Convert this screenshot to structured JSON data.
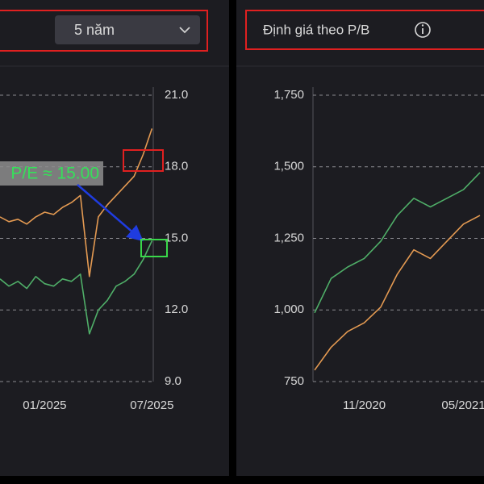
{
  "ui": {
    "period_select": "5 năm",
    "panel_title": "Định giá theo P/B"
  },
  "chart_data": [
    {
      "type": "line",
      "annotation": "P/E ≈ 15.00",
      "categories": [
        null,
        null,
        null,
        null,
        null,
        "01/2025",
        null,
        null,
        null,
        null,
        null,
        null,
        null,
        null,
        null,
        null,
        null,
        "07/2025"
      ],
      "series": [
        {
          "color": "#e49a52",
          "values": [
            15.9,
            15.7,
            15.8,
            15.6,
            15.9,
            16.1,
            16.0,
            16.3,
            16.5,
            16.8,
            13.4,
            15.9,
            16.4,
            16.8,
            17.2,
            17.6,
            18.5,
            19.6
          ]
        },
        {
          "color": "#4fae68",
          "values": [
            13.3,
            13.0,
            13.2,
            12.9,
            13.4,
            13.1,
            13.0,
            13.3,
            13.2,
            13.5,
            11.0,
            12.0,
            12.4,
            13.0,
            13.2,
            13.5,
            14.1,
            14.9
          ]
        }
      ],
      "ylim": [
        9,
        21
      ],
      "yticks": [
        {
          "value": 9,
          "label": "9.0"
        },
        {
          "value": 12,
          "label": "12.0"
        },
        {
          "value": 15,
          "label": "15.0"
        },
        {
          "value": 18,
          "label": "18.0"
        },
        {
          "value": 21,
          "label": "21.0"
        }
      ],
      "grid": true
    },
    {
      "type": "line",
      "categories": [
        null,
        null,
        null,
        "11/2020",
        null,
        null,
        null,
        null,
        null,
        "05/2021",
        null
      ],
      "series": [
        {
          "color": "#4fae68",
          "values": [
            990,
            1110,
            1150,
            1180,
            1240,
            1330,
            1390,
            1360,
            1390,
            1420,
            1480
          ]
        },
        {
          "color": "#e49a52",
          "values": [
            790,
            870,
            925,
            955,
            1010,
            1125,
            1210,
            1180,
            1240,
            1300,
            1330
          ]
        }
      ],
      "ylim": [
        750,
        1750
      ],
      "yticks": [
        750,
        {
          "value": 1000,
          "label": "1,000"
        },
        {
          "value": 1250,
          "label": "1,250"
        },
        {
          "value": 1500,
          "label": "1,500"
        },
        {
          "value": 1750,
          "label": "1,750"
        }
      ],
      "grid": true
    }
  ]
}
